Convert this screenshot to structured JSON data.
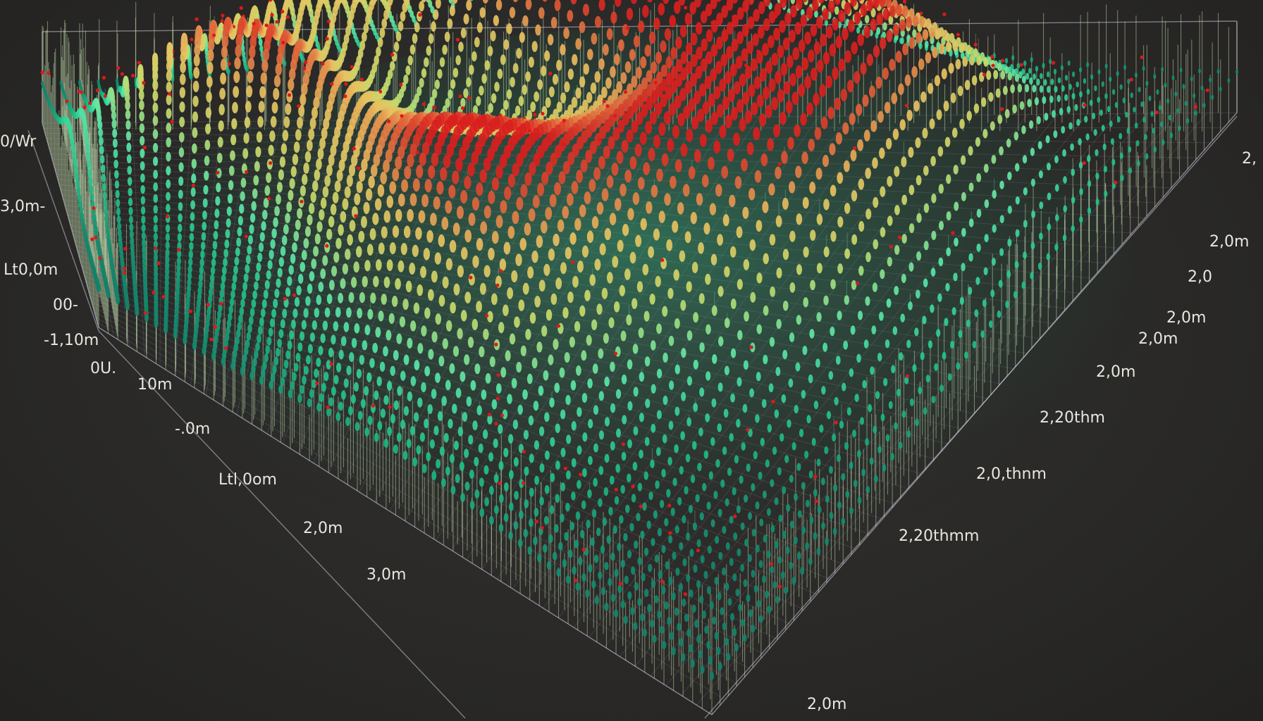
{
  "chart_data": {
    "type": "surface-3d",
    "title": "",
    "xlabel": "",
    "ylabel": "",
    "zlabel": "",
    "grid": true,
    "legend": "none",
    "colormap": [
      "#0f6b5e",
      "#1fbf88",
      "#59e6a8",
      "#c9d96a",
      "#e8c060",
      "#d81e1e"
    ],
    "marker_colors": {
      "low": "#1fbf88",
      "mid": "#c9d96a",
      "peak": "#d81e1e",
      "outlier": "#e01818"
    },
    "peaks": [
      {
        "name": "peak-back-center",
        "u": 0.42,
        "v": 0.08,
        "height": 0.45,
        "spread": 0.1
      },
      {
        "name": "peak-back-left",
        "u": 0.22,
        "v": 0.22,
        "height": 0.55,
        "spread": 0.1
      },
      {
        "name": "peak-center-ridge",
        "u": 0.55,
        "v": 0.2,
        "height": 1.0,
        "spread": 0.13
      },
      {
        "name": "peak-right",
        "u": 0.8,
        "v": 0.25,
        "height": 0.6,
        "spread": 0.11
      },
      {
        "name": "peak-left",
        "u": 0.18,
        "v": 0.48,
        "height": 0.8,
        "spread": 0.12
      },
      {
        "name": "peak-right-center",
        "u": 0.75,
        "v": 0.48,
        "height": 0.85,
        "spread": 0.13
      },
      {
        "name": "peak-front",
        "u": 0.48,
        "v": 0.68,
        "height": 0.95,
        "spread": 0.16
      }
    ],
    "left_axis_ticks": [
      "0/Wr",
      "3,0m-",
      "Lt0,0m",
      "00-",
      "-1,10m",
      "0U."
    ],
    "front_left_axis_ticks": [
      "10m",
      "-.0m",
      "Ltl,0om",
      "2,0m",
      "3,0m"
    ],
    "right_axis_ticks": [
      "2,",
      "2,0m",
      "2,0",
      "2,0m",
      "2,0m",
      "2,0m",
      "2,20thm",
      "2,0,thnm",
      "2,20thmm",
      "2,0m"
    ]
  }
}
